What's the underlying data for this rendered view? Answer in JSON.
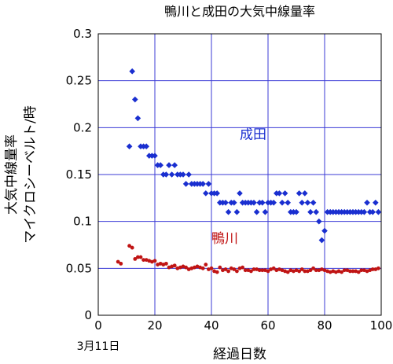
{
  "chart_data": {
    "type": "scatter",
    "title": "鴨川と成田の大気中線量率",
    "xlabel": "経過日数",
    "ylabel": [
      "大気中線量率",
      "マイクロシーベルト/時"
    ],
    "x_note": "3月11日",
    "xlim": [
      0,
      100
    ],
    "ylim": [
      0,
      0.3
    ],
    "x_ticks": [
      "0",
      "20",
      "40",
      "60",
      "80",
      "100"
    ],
    "y_ticks": [
      "0",
      "0.05",
      "0.1",
      "0.15",
      "0.2",
      "0.25",
      "0.3"
    ],
    "x_tick_values": [
      0,
      20,
      40,
      60,
      80,
      100
    ],
    "y_tick_values": [
      0,
      0.05,
      0.1,
      0.15,
      0.2,
      0.25,
      0.3
    ],
    "grid": true,
    "series": [
      {
        "name": "成田",
        "color": "#1a2fd0",
        "marker": "diamond",
        "label_at": [
          50,
          0.188
        ],
        "points": [
          [
            11,
            0.18
          ],
          [
            12,
            0.26
          ],
          [
            13,
            0.23
          ],
          [
            14,
            0.21
          ],
          [
            15,
            0.18
          ],
          [
            16,
            0.18
          ],
          [
            17,
            0.18
          ],
          [
            18,
            0.17
          ],
          [
            19,
            0.17
          ],
          [
            20,
            0.17
          ],
          [
            21,
            0.16
          ],
          [
            22,
            0.16
          ],
          [
            23,
            0.15
          ],
          [
            24,
            0.15
          ],
          [
            25,
            0.16
          ],
          [
            26,
            0.15
          ],
          [
            27,
            0.16
          ],
          [
            28,
            0.15
          ],
          [
            29,
            0.15
          ],
          [
            30,
            0.15
          ],
          [
            31,
            0.14
          ],
          [
            32,
            0.15
          ],
          [
            33,
            0.14
          ],
          [
            34,
            0.14
          ],
          [
            35,
            0.14
          ],
          [
            36,
            0.14
          ],
          [
            37,
            0.14
          ],
          [
            38,
            0.13
          ],
          [
            39,
            0.14
          ],
          [
            40,
            0.13
          ],
          [
            41,
            0.13
          ],
          [
            42,
            0.13
          ],
          [
            43,
            0.12
          ],
          [
            44,
            0.12
          ],
          [
            45,
            0.12
          ],
          [
            46,
            0.11
          ],
          [
            47,
            0.12
          ],
          [
            48,
            0.12
          ],
          [
            49,
            0.11
          ],
          [
            50,
            0.13
          ],
          [
            51,
            0.12
          ],
          [
            52,
            0.12
          ],
          [
            53,
            0.12
          ],
          [
            54,
            0.12
          ],
          [
            55,
            0.12
          ],
          [
            56,
            0.11
          ],
          [
            57,
            0.12
          ],
          [
            58,
            0.12
          ],
          [
            59,
            0.11
          ],
          [
            60,
            0.12
          ],
          [
            61,
            0.12
          ],
          [
            62,
            0.12
          ],
          [
            63,
            0.13
          ],
          [
            64,
            0.13
          ],
          [
            65,
            0.12
          ],
          [
            66,
            0.13
          ],
          [
            67,
            0.12
          ],
          [
            68,
            0.11
          ],
          [
            69,
            0.11
          ],
          [
            70,
            0.11
          ],
          [
            71,
            0.13
          ],
          [
            72,
            0.12
          ],
          [
            73,
            0.13
          ],
          [
            74,
            0.12
          ],
          [
            75,
            0.11
          ],
          [
            76,
            0.12
          ],
          [
            77,
            0.11
          ],
          [
            78,
            0.1
          ],
          [
            79,
            0.08
          ],
          [
            80,
            0.09
          ],
          [
            81,
            0.11
          ],
          [
            82,
            0.11
          ],
          [
            83,
            0.11
          ],
          [
            84,
            0.11
          ],
          [
            85,
            0.11
          ],
          [
            86,
            0.11
          ],
          [
            87,
            0.11
          ],
          [
            88,
            0.11
          ],
          [
            89,
            0.11
          ],
          [
            90,
            0.11
          ],
          [
            91,
            0.11
          ],
          [
            92,
            0.11
          ],
          [
            93,
            0.11
          ],
          [
            94,
            0.11
          ],
          [
            95,
            0.12
          ],
          [
            96,
            0.11
          ],
          [
            97,
            0.11
          ],
          [
            98,
            0.12
          ],
          [
            99,
            0.11
          ]
        ]
      },
      {
        "name": "鴨川",
        "color": "#c01414",
        "marker": "circle",
        "label_at": [
          40,
          0.077
        ],
        "points": [
          [
            7,
            0.057
          ],
          [
            8,
            0.055
          ],
          [
            11,
            0.074
          ],
          [
            12,
            0.072
          ],
          [
            13,
            0.06
          ],
          [
            14,
            0.062
          ],
          [
            15,
            0.062
          ],
          [
            16,
            0.059
          ],
          [
            17,
            0.059
          ],
          [
            18,
            0.058
          ],
          [
            19,
            0.057
          ],
          [
            20,
            0.058
          ],
          [
            21,
            0.054
          ],
          [
            22,
            0.055
          ],
          [
            23,
            0.054
          ],
          [
            24,
            0.055
          ],
          [
            25,
            0.051
          ],
          [
            26,
            0.052
          ],
          [
            27,
            0.053
          ],
          [
            28,
            0.05
          ],
          [
            29,
            0.051
          ],
          [
            30,
            0.052
          ],
          [
            31,
            0.051
          ],
          [
            32,
            0.049
          ],
          [
            33,
            0.05
          ],
          [
            34,
            0.051
          ],
          [
            35,
            0.052
          ],
          [
            36,
            0.051
          ],
          [
            37,
            0.05
          ],
          [
            38,
            0.054
          ],
          [
            39,
            0.049
          ],
          [
            40,
            0.05
          ],
          [
            41,
            0.047
          ],
          [
            42,
            0.046
          ],
          [
            43,
            0.051
          ],
          [
            44,
            0.048
          ],
          [
            45,
            0.049
          ],
          [
            46,
            0.047
          ],
          [
            47,
            0.05
          ],
          [
            48,
            0.049
          ],
          [
            49,
            0.047
          ],
          [
            50,
            0.05
          ],
          [
            51,
            0.051
          ],
          [
            52,
            0.048
          ],
          [
            53,
            0.048
          ],
          [
            54,
            0.047
          ],
          [
            55,
            0.049
          ],
          [
            56,
            0.049
          ],
          [
            57,
            0.048
          ],
          [
            58,
            0.048
          ],
          [
            59,
            0.048
          ],
          [
            60,
            0.047
          ],
          [
            61,
            0.049
          ],
          [
            62,
            0.05
          ],
          [
            63,
            0.048
          ],
          [
            64,
            0.049
          ],
          [
            65,
            0.048
          ],
          [
            66,
            0.047
          ],
          [
            67,
            0.046
          ],
          [
            68,
            0.048
          ],
          [
            69,
            0.047
          ],
          [
            70,
            0.048
          ],
          [
            71,
            0.047
          ],
          [
            72,
            0.049
          ],
          [
            73,
            0.047
          ],
          [
            74,
            0.047
          ],
          [
            75,
            0.048
          ],
          [
            76,
            0.05
          ],
          [
            77,
            0.048
          ],
          [
            78,
            0.048
          ],
          [
            79,
            0.049
          ],
          [
            80,
            0.048
          ],
          [
            81,
            0.047
          ],
          [
            82,
            0.046
          ],
          [
            83,
            0.047
          ],
          [
            84,
            0.046
          ],
          [
            85,
            0.047
          ],
          [
            86,
            0.046
          ],
          [
            87,
            0.048
          ],
          [
            88,
            0.048
          ],
          [
            89,
            0.047
          ],
          [
            90,
            0.047
          ],
          [
            91,
            0.047
          ],
          [
            92,
            0.046
          ],
          [
            93,
            0.048
          ],
          [
            94,
            0.048
          ],
          [
            95,
            0.047
          ],
          [
            96,
            0.048
          ],
          [
            97,
            0.049
          ],
          [
            98,
            0.049
          ],
          [
            99,
            0.05
          ]
        ]
      }
    ]
  }
}
